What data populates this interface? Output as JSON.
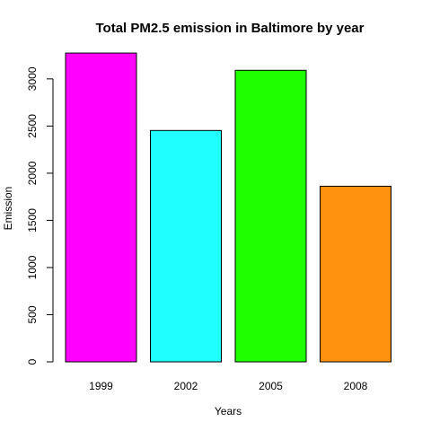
{
  "chart_data": {
    "type": "bar",
    "title": "Total PM2.5 emission in Baltimore by year",
    "xlabel": "Years",
    "ylabel": "Emission",
    "categories": [
      "1999",
      "2002",
      "2005",
      "2008"
    ],
    "values": [
      3274,
      2453,
      3091,
      1862
    ],
    "colors": [
      "#ff00ff",
      "#1fffff",
      "#1fff00",
      "#ff9310"
    ],
    "ylim": [
      0,
      3274
    ],
    "yticks": [
      0,
      500,
      1000,
      1500,
      2000,
      2500,
      3000
    ],
    "ytick_labels": [
      "0",
      "500",
      "1000",
      "1500",
      "2000",
      "2500",
      "3000"
    ],
    "grid": false,
    "legend": "none"
  }
}
